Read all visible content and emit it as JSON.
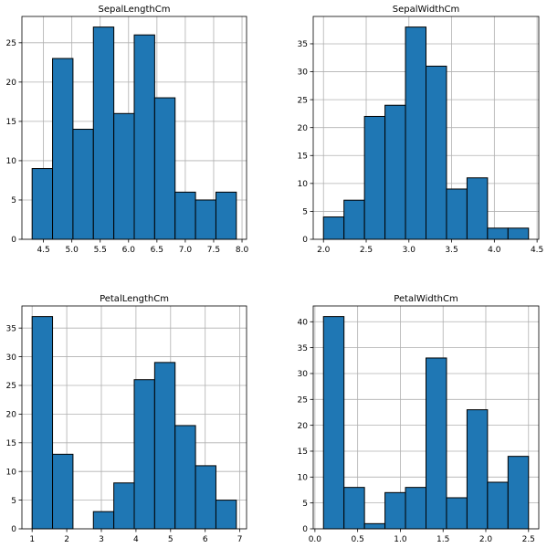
{
  "chart_data": [
    {
      "type": "bar",
      "title": "SepalLengthCm",
      "bin_edges": [
        4.3,
        4.66,
        5.02,
        5.38,
        5.74,
        6.1,
        6.46,
        6.82,
        7.18,
        7.54,
        7.9
      ],
      "values": [
        9,
        23,
        14,
        27,
        16,
        26,
        18,
        6,
        5,
        6
      ],
      "xlim": [
        4.12,
        8.08
      ],
      "ylim": [
        0,
        28.35
      ],
      "xticks": [
        4.5,
        5.0,
        5.5,
        6.0,
        6.5,
        7.0,
        7.5,
        8.0
      ],
      "xtick_labels": [
        "4.5",
        "5.0",
        "5.5",
        "6.0",
        "6.5",
        "7.0",
        "7.5",
        "8.0"
      ],
      "yticks": [
        0,
        5,
        10,
        15,
        20,
        25
      ],
      "ytick_labels": [
        "0",
        "5",
        "10",
        "15",
        "20",
        "25"
      ],
      "grid": true,
      "color": "#1f77b4"
    },
    {
      "type": "bar",
      "title": "SepalWidthCm",
      "bin_edges": [
        2.0,
        2.24,
        2.48,
        2.72,
        2.96,
        3.2,
        3.44,
        3.68,
        3.92,
        4.16,
        4.4
      ],
      "values": [
        4,
        7,
        22,
        24,
        38,
        31,
        9,
        11,
        2,
        2
      ],
      "xlim": [
        1.88,
        4.52
      ],
      "ylim": [
        0,
        39.9
      ],
      "xticks": [
        2.0,
        2.5,
        3.0,
        3.5,
        4.0,
        4.5
      ],
      "xtick_labels": [
        "2.0",
        "2.5",
        "3.0",
        "3.5",
        "4.0",
        "4.5"
      ],
      "yticks": [
        0,
        5,
        10,
        15,
        20,
        25,
        30,
        35
      ],
      "ytick_labels": [
        "0",
        "5",
        "10",
        "15",
        "20",
        "25",
        "30",
        "35"
      ],
      "grid": true,
      "color": "#1f77b4"
    },
    {
      "type": "bar",
      "title": "PetalLengthCm",
      "bin_edges": [
        1.0,
        1.59,
        2.18,
        2.77,
        3.36,
        3.95,
        4.54,
        5.13,
        5.72,
        6.31,
        6.9
      ],
      "values": [
        37,
        13,
        0,
        3,
        8,
        26,
        29,
        18,
        11,
        5
      ],
      "xlim": [
        0.705,
        7.195
      ],
      "ylim": [
        0,
        38.85
      ],
      "xticks": [
        1,
        2,
        3,
        4,
        5,
        6,
        7
      ],
      "xtick_labels": [
        "1",
        "2",
        "3",
        "4",
        "5",
        "6",
        "7"
      ],
      "yticks": [
        0,
        5,
        10,
        15,
        20,
        25,
        30,
        35
      ],
      "ytick_labels": [
        "0",
        "5",
        "10",
        "15",
        "20",
        "25",
        "30",
        "35"
      ],
      "grid": true,
      "color": "#1f77b4"
    },
    {
      "type": "bar",
      "title": "PetalWidthCm",
      "bin_edges": [
        0.1,
        0.34,
        0.58,
        0.82,
        1.06,
        1.3,
        1.54,
        1.78,
        2.02,
        2.26,
        2.5
      ],
      "values": [
        41,
        8,
        1,
        7,
        8,
        33,
        6,
        23,
        9,
        14
      ],
      "xlim": [
        -0.02,
        2.62
      ],
      "ylim": [
        0,
        43.05
      ],
      "xticks": [
        0.0,
        0.5,
        1.0,
        1.5,
        2.0,
        2.5
      ],
      "xtick_labels": [
        "0.0",
        "0.5",
        "1.0",
        "1.5",
        "2.0",
        "2.5"
      ],
      "yticks": [
        0,
        5,
        10,
        15,
        20,
        25,
        30,
        35,
        40
      ],
      "ytick_labels": [
        "0",
        "5",
        "10",
        "15",
        "20",
        "25",
        "30",
        "35",
        "40"
      ],
      "grid": true,
      "color": "#1f77b4"
    }
  ]
}
